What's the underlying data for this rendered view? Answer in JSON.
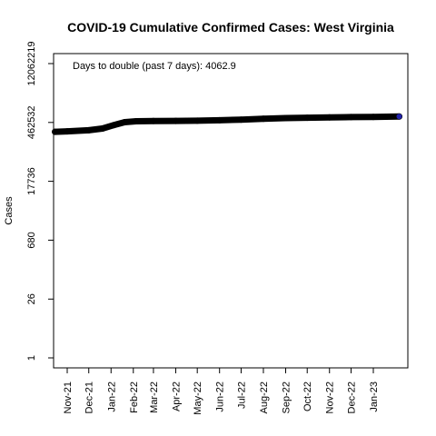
{
  "chart_data": {
    "type": "line",
    "title": "COVID-19 Cumulative Confirmed Cases: West Virginia",
    "xlabel": "",
    "ylabel": "Cases",
    "y_scale": "log",
    "annotation": "Days to double (past 7 days): 4062.9",
    "x_ticks": [
      "Nov-21",
      "Dec-21",
      "Jan-22",
      "Feb-22",
      "Mar-22",
      "Apr-22",
      "May-22",
      "Jun-22",
      "Jul-22",
      "Aug-22",
      "Sep-22",
      "Oct-22",
      "Nov-22",
      "Dec-22",
      "Jan-23"
    ],
    "y_ticks": [
      "1",
      "26",
      "680",
      "17736",
      "462532",
      "12062219"
    ],
    "series": [
      {
        "color": "#000000",
        "x": [
          "2021-10-15",
          "2021-11-01",
          "2021-12-01",
          "2021-12-20",
          "2022-01-05",
          "2022-01-20",
          "2022-02-05",
          "2022-03-01",
          "2022-04-01",
          "2022-05-01",
          "2022-06-01",
          "2022-07-01",
          "2022-08-01",
          "2022-09-01",
          "2022-10-01",
          "2022-11-01",
          "2022-12-01",
          "2023-01-01",
          "2023-02-06"
        ],
        "y": [
          275000,
          282000,
          300000,
          330000,
          400000,
          470000,
          495000,
          502000,
          505000,
          510000,
          522000,
          540000,
          565000,
          590000,
          602000,
          612000,
          622000,
          630000,
          640000
        ]
      }
    ],
    "last_point_color": "#2222aa"
  }
}
